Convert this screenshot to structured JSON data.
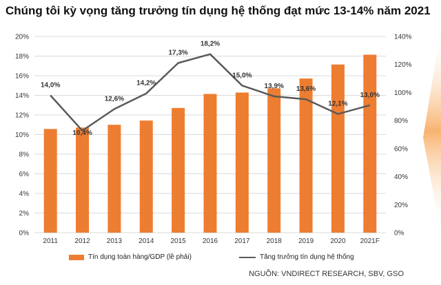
{
  "chart_data": {
    "type": "bar+line",
    "title": "Chúng tôi kỳ vọng tăng trưởng tín dụng hệ thống đạt mức 13-14% năm 2021",
    "categories": [
      "2011",
      "2012",
      "2013",
      "2014",
      "2015",
      "2016",
      "2017",
      "2018",
      "2019",
      "2020",
      "2021F"
    ],
    "series": [
      {
        "name": "Tín dụng toàn hàng/GDP (lề phải)",
        "kind": "bar",
        "axis": "right",
        "color": "#ED7D31",
        "values": [
          74,
          75,
          77,
          80,
          89,
          99,
          100,
          103,
          110,
          120,
          127
        ]
      },
      {
        "name": "Tăng trưởng tín dụng hệ thống",
        "kind": "line",
        "axis": "left",
        "color": "#595959",
        "values": [
          14.0,
          10.4,
          12.6,
          14.2,
          17.3,
          18.2,
          15.0,
          13.9,
          13.6,
          12.1,
          13.0
        ],
        "labels": [
          "14,0%",
          "10,4%",
          "12,6%",
          "14,2%",
          "17,3%",
          "18,2%",
          "15,0%",
          "13,9%",
          "13,6%",
          "12,1%",
          "13,0%"
        ]
      }
    ],
    "left_axis": {
      "ylim": [
        0,
        20
      ],
      "ticks": [
        "0%",
        "2%",
        "4%",
        "6%",
        "8%",
        "10%",
        "12%",
        "14%",
        "16%",
        "18%",
        "20%"
      ]
    },
    "right_axis": {
      "ylim": [
        0,
        140
      ],
      "ticks": [
        "0%",
        "20%",
        "40%",
        "60%",
        "80%",
        "100%",
        "120%",
        "140%"
      ]
    },
    "grid": true,
    "legend_position": "bottom"
  },
  "source": "NGUỒN: VNDIRECT RESEARCH, SBV, GSO",
  "colors": {
    "bar": "#ED7D31",
    "line": "#595959",
    "grid": "#D9D9D9"
  }
}
